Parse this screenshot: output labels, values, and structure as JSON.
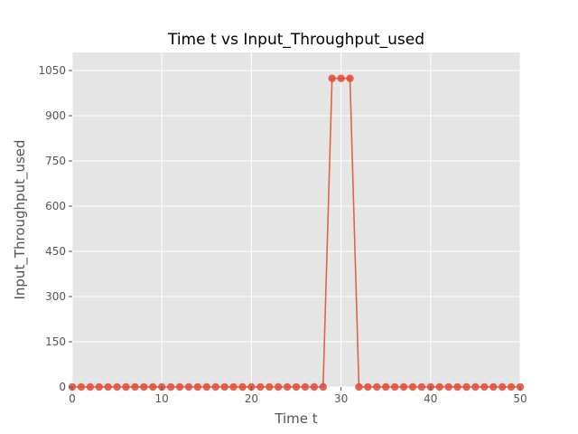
{
  "chart_data": {
    "type": "line",
    "title": "Time t vs Input_Throughput_used",
    "xlabel": "Time t",
    "ylabel": "Input_Throughput_used",
    "xlim": [
      0,
      50
    ],
    "ylim": [
      0,
      1110
    ],
    "x_ticks": [
      0,
      10,
      20,
      30,
      40,
      50
    ],
    "y_ticks": [
      0,
      150,
      300,
      450,
      600,
      750,
      900,
      1050
    ],
    "grid": true,
    "legend": "none",
    "series": [
      {
        "color": "#e24a33",
        "marker": "circle",
        "x": [
          0,
          1,
          2,
          3,
          4,
          5,
          6,
          7,
          8,
          9,
          10,
          11,
          12,
          13,
          14,
          15,
          16,
          17,
          18,
          19,
          20,
          21,
          22,
          23,
          24,
          25,
          26,
          27,
          28,
          29,
          30,
          31,
          32,
          33,
          34,
          35,
          36,
          37,
          38,
          39,
          40,
          41,
          42,
          43,
          44,
          45,
          46,
          47,
          48,
          49,
          50
        ],
        "values": [
          0,
          0,
          0,
          0,
          0,
          0,
          0,
          0,
          0,
          0,
          0,
          0,
          0,
          0,
          0,
          0,
          0,
          0,
          0,
          0,
          0,
          0,
          0,
          0,
          0,
          0,
          0,
          0,
          0,
          1024,
          1024,
          1024,
          0,
          0,
          0,
          0,
          0,
          0,
          0,
          0,
          0,
          0,
          0,
          0,
          0,
          0,
          0,
          0,
          0,
          0,
          0
        ]
      }
    ],
    "style": {
      "plot_background": "#e5e5e5",
      "grid_color": "#ffffff",
      "tick_color": "#555555"
    }
  }
}
